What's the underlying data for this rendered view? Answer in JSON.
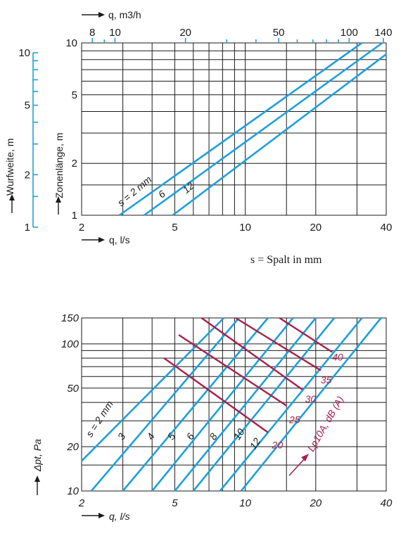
{
  "chart_data": [
    {
      "type": "line",
      "xscale": "log",
      "yscale": "log",
      "xlim": [
        2,
        40
      ],
      "ylim": [
        1,
        10
      ],
      "xlabel": "q, l/s",
      "ylabel": "Zonenlänge, m",
      "xticks": [
        "2",
        "5",
        "10",
        "20",
        "40"
      ],
      "yticks": [
        "1",
        "2",
        "5",
        "10"
      ],
      "top_axis": {
        "label": "q, m3/h",
        "ticks": [
          "8",
          "10",
          "20",
          "50",
          "100",
          "140"
        ]
      },
      "left_axis": {
        "label": "Wurfweite, m",
        "ticks": [
          "1",
          "2",
          "5",
          "10"
        ]
      },
      "note": "s = Spalt in mm",
      "series": [
        {
          "name": "s = 2 mm",
          "label": "s = 2 mm",
          "x": [
            2.9,
            31.5
          ],
          "y": [
            1.0,
            10.0
          ]
        },
        {
          "name": "6",
          "label": "6",
          "x": [
            3.7,
            38.5
          ],
          "y": [
            1.0,
            10.0
          ]
        },
        {
          "name": "12",
          "label": "12",
          "x": [
            4.9,
            40.0
          ],
          "y": [
            1.0,
            8.6
          ]
        }
      ]
    },
    {
      "type": "line",
      "xscale": "log",
      "yscale": "log",
      "xlim": [
        2,
        40
      ],
      "ylim": [
        10,
        150
      ],
      "xlabel": "q, l/s",
      "ylabel": "Δpt, Pa",
      "xticks": [
        "2",
        "5",
        "10",
        "20",
        "40"
      ],
      "yticks": [
        "10",
        "20",
        "50",
        "100",
        "150"
      ],
      "series": [
        {
          "name": "s = 2 mm",
          "label": "s = 2 mm",
          "x": [
            2.0,
            8.1
          ],
          "y": [
            16.0,
            150
          ]
        },
        {
          "name": "3",
          "label": "3",
          "x": [
            2.2,
            9.4
          ],
          "y": [
            10,
            150
          ]
        },
        {
          "name": "4",
          "label": "4",
          "x": [
            3.0,
            12.5
          ],
          "y": [
            10,
            150
          ]
        },
        {
          "name": "5",
          "label": "5",
          "x": [
            4.0,
            16.0
          ],
          "y": [
            10,
            150
          ]
        },
        {
          "name": "6",
          "label": "6",
          "x": [
            5.0,
            20.0
          ],
          "y": [
            10,
            150
          ]
        },
        {
          "name": "8",
          "label": "8",
          "x": [
            6.0,
            24.0
          ],
          "y": [
            10,
            150
          ]
        },
        {
          "name": "10",
          "label": "10",
          "x": [
            7.8,
            31.5
          ],
          "y": [
            10,
            150
          ]
        },
        {
          "name": "12",
          "label": "12",
          "x": [
            9.6,
            38.0
          ],
          "y": [
            10,
            150
          ]
        }
      ],
      "noise_series": {
        "label": "Lp10A, dB (A)",
        "series": [
          {
            "name": "20",
            "label": "20",
            "x": [
              4.5,
              12.5
            ],
            "y": [
              80,
              25
            ]
          },
          {
            "name": "25",
            "label": "25",
            "x": [
              5.2,
              15.0
            ],
            "y": [
              115,
              38
            ]
          },
          {
            "name": "30",
            "label": "30",
            "x": [
              6.5,
              17.5
            ],
            "y": [
              150,
              49
            ]
          },
          {
            "name": "35",
            "label": "35",
            "x": [
              9.1,
              21.0
            ],
            "y": [
              150,
              66
            ]
          },
          {
            "name": "40",
            "label": "40",
            "x": [
              14.0,
              23.5
            ],
            "y": [
              150,
              88
            ]
          }
        ]
      }
    }
  ]
}
